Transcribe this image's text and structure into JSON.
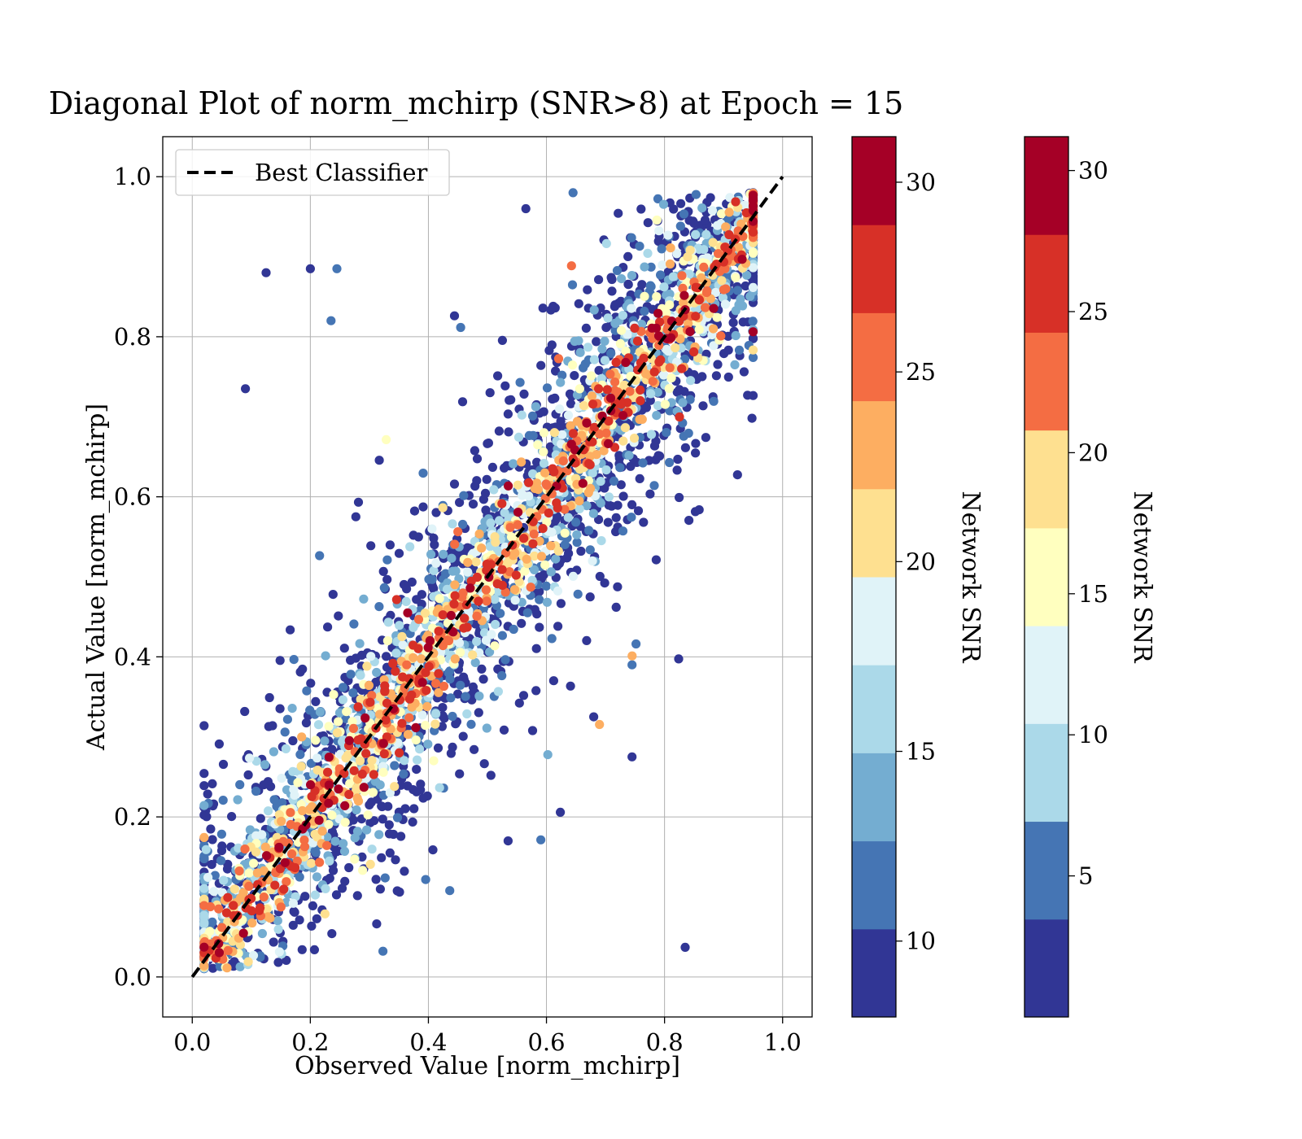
{
  "chart_data": {
    "type": "scatter",
    "title": "Diagonal Plot of norm_mchirp (SNR>8) at Epoch = 15",
    "xlabel": "Observed Value [norm_mchirp]",
    "ylabel": "Actual Value [norm_mchirp]",
    "xlim": [
      -0.05,
      1.05
    ],
    "ylim": [
      -0.05,
      1.05
    ],
    "xticks": [
      "0.0",
      "0.2",
      "0.4",
      "0.6",
      "0.8",
      "1.0"
    ],
    "yticks": [
      "0.0",
      "0.2",
      "0.4",
      "0.6",
      "0.8",
      "1.0"
    ],
    "grid": true,
    "legend": {
      "position": "top-left",
      "entries": [
        "Best Classifier"
      ]
    },
    "reference_line": {
      "name": "Best Classifier",
      "x": [
        0.0,
        1.0
      ],
      "y": [
        0.0,
        1.0
      ],
      "style": "dashed",
      "color": "#000000"
    },
    "color_scale": [
      "#313695",
      "#4575b4",
      "#74add1",
      "#abd9e9",
      "#e0f3f8",
      "#ffffbf",
      "#fee090",
      "#fdae61",
      "#f46d43",
      "#d73027",
      "#a50026"
    ],
    "colorbars": [
      {
        "label": "Network SNR",
        "min": 8,
        "max": 31.2,
        "ticks": [
          10,
          15,
          20,
          25,
          30
        ],
        "levels": 10
      },
      {
        "label": "Network SNR",
        "min": 0,
        "max": 31.2,
        "ticks": [
          5,
          10,
          15,
          20,
          25,
          30
        ],
        "levels": 9
      }
    ],
    "points": {
      "description_count": 4000,
      "noted_outliers": [
        {
          "x": 0.09,
          "y": 0.735
        },
        {
          "x": 0.125,
          "y": 0.88
        },
        {
          "x": 0.2,
          "y": 0.885
        },
        {
          "x": 0.245,
          "y": 0.885
        },
        {
          "x": 0.235,
          "y": 0.82
        },
        {
          "x": 0.745,
          "y": 0.275
        },
        {
          "x": 0.835,
          "y": 0.037
        },
        {
          "x": 0.645,
          "y": 0.98
        },
        {
          "x": 0.565,
          "y": 0.96
        },
        {
          "x": 0.745,
          "y": 0.39
        },
        {
          "x": 0.68,
          "y": 0.325
        },
        {
          "x": 0.535,
          "y": 0.17
        }
      ]
    }
  }
}
